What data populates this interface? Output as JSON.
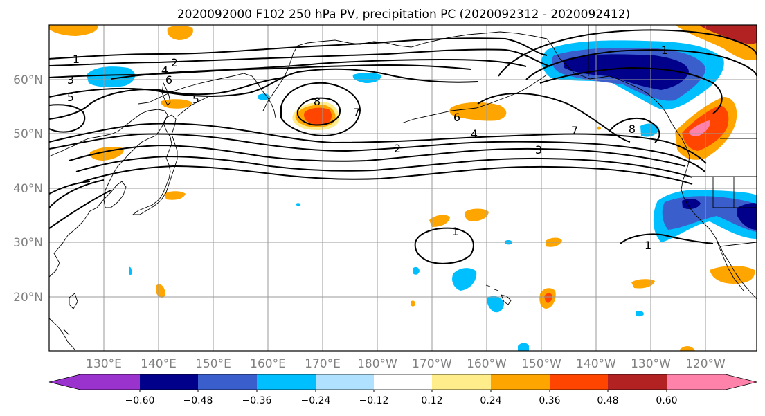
{
  "title": "2020092000 F102 250 hPa PV, precipitation PC (2020092312 - 2020092412)",
  "lat_labels": [
    "60°N",
    "50°N",
    "40°N",
    "30°N",
    "20°N"
  ],
  "lon_labels": [
    "130°E",
    "140°E",
    "150°E",
    "160°E",
    "170°E",
    "180°W",
    "170°W",
    "160°W",
    "150°W",
    "140°W",
    "130°W",
    "120°W"
  ],
  "contour_labels": [
    "1",
    "2",
    "3",
    "4",
    "5",
    "6",
    "7",
    "8",
    "1",
    "2",
    "3",
    "4",
    "5",
    "6",
    "7",
    "8",
    "1",
    "1"
  ],
  "colorbar": {
    "colors": [
      "#9a32cd",
      "#00008b",
      "#3a5fcd",
      "#00bfff",
      "#b0e2ff",
      "#ffffff",
      "#ffec8b",
      "#ffa500",
      "#ff4500",
      "#b22222",
      "#ff82ab"
    ],
    "tick_labels": [
      "−0.60",
      "−0.48",
      "−0.36",
      "−0.24",
      "−0.12",
      "0.12",
      "0.24",
      "0.36",
      "0.48",
      "0.60"
    ]
  }
}
